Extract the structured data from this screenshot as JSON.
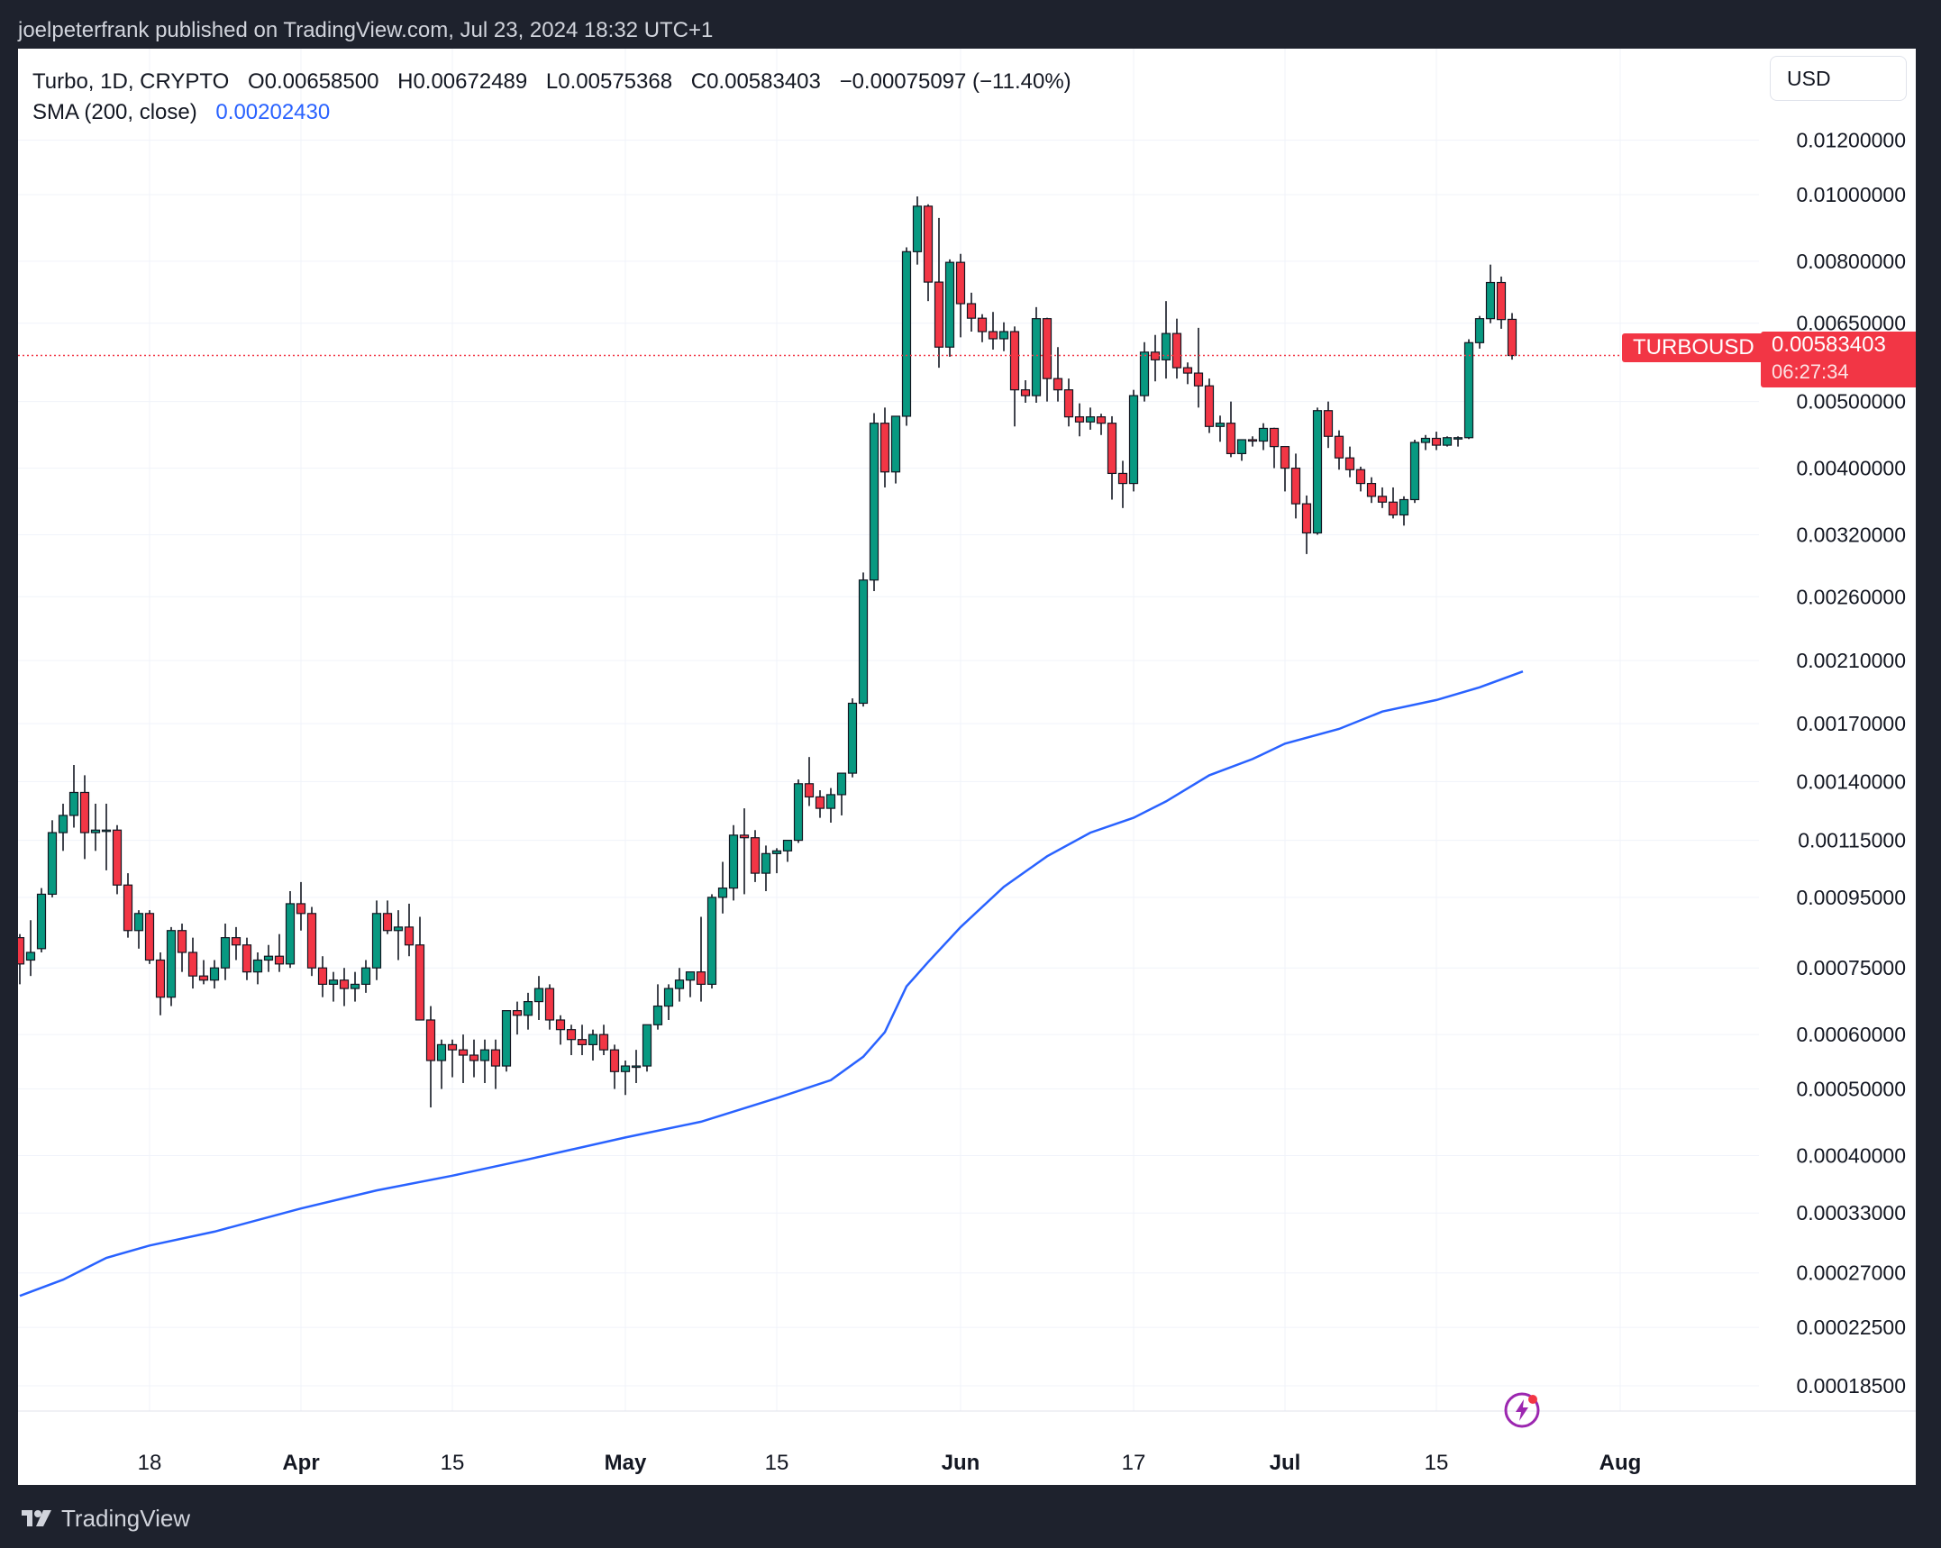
{
  "caption": "joelpeterfrank published on TradingView.com, Jul 23, 2024 18:32 UTC+1",
  "legend": {
    "symbol": "Turbo, 1D, CRYPTO",
    "open": "O0.00658500",
    "high": "H0.00672489",
    "low": "L0.00575368",
    "close": "C0.00583403",
    "change": "−0.00075097 (−11.40%)",
    "sma_label": "SMA (200, close)",
    "sma_value": "0.00202430"
  },
  "currency": "USD",
  "symbol_tag": "TURBOUSD",
  "last_price": "0.00583403",
  "countdown": "06:27:34",
  "brand": "TradingView",
  "colors": {
    "up": "#089981",
    "down": "#f23645",
    "sma": "#2962ff",
    "grid": "#f0f3fa",
    "axis_text": "#131722",
    "page_bg": "#1e222d"
  },
  "chart_data": {
    "type": "candlestick",
    "scale": "log",
    "interval": "1D",
    "ylim": [
      0.00017,
      0.0132
    ],
    "y_ticks": [
      "0.00018500",
      "0.00022500",
      "0.00027000",
      "0.00033000",
      "0.00040000",
      "0.00050000",
      "0.00060000",
      "0.00075000",
      "0.00095000",
      "0.00115000",
      "0.00140000",
      "0.00170000",
      "0.00210000",
      "0.00260000",
      "0.00320000",
      "0.00400000",
      "0.00500000",
      "0.00650000",
      "0.00800000",
      "0.01000000",
      "0.01200000"
    ],
    "x_ticks": [
      {
        "label": "18",
        "date": "2024-03-18"
      },
      {
        "label": "Apr",
        "date": "2024-04-01"
      },
      {
        "label": "15",
        "date": "2024-04-15"
      },
      {
        "label": "May",
        "date": "2024-05-01"
      },
      {
        "label": "15",
        "date": "2024-05-15"
      },
      {
        "label": "Jun",
        "date": "2024-06-01"
      },
      {
        "label": "17",
        "date": "2024-06-17"
      },
      {
        "label": "Jul",
        "date": "2024-07-01"
      },
      {
        "label": "15",
        "date": "2024-07-15"
      },
      {
        "label": "Aug",
        "date": "2024-08-01"
      }
    ],
    "last_price": 0.00583403,
    "first_date": "2024-03-06",
    "candles": [
      [
        0.00083,
        0.00084,
        0.00071,
        0.00076
      ],
      [
        0.00077,
        0.00088,
        0.00073,
        0.00079
      ],
      [
        0.0008,
        0.00098,
        0.00079,
        0.00096
      ],
      [
        0.00096,
        0.00123,
        0.00095,
        0.00118
      ],
      [
        0.00118,
        0.0013,
        0.00111,
        0.00125
      ],
      [
        0.00125,
        0.00148,
        0.0012,
        0.00135
      ],
      [
        0.00135,
        0.00143,
        0.00108,
        0.00118
      ],
      [
        0.00118,
        0.0013,
        0.00111,
        0.00119
      ],
      [
        0.00119,
        0.0013,
        0.00104,
        0.00119
      ],
      [
        0.00119,
        0.00121,
        0.00096,
        0.00099
      ],
      [
        0.00099,
        0.00103,
        0.00083,
        0.00085
      ],
      [
        0.00085,
        0.00091,
        0.0008,
        0.0009
      ],
      [
        0.0009,
        0.00091,
        0.00076,
        0.00077
      ],
      [
        0.00077,
        0.00079,
        0.00064,
        0.00068
      ],
      [
        0.00068,
        0.00086,
        0.00066,
        0.00085
      ],
      [
        0.00085,
        0.00087,
        0.00074,
        0.00079
      ],
      [
        0.00079,
        0.00083,
        0.0007,
        0.00073
      ],
      [
        0.00073,
        0.00077,
        0.00071,
        0.00072
      ],
      [
        0.00072,
        0.00077,
        0.0007,
        0.00075
      ],
      [
        0.00075,
        0.00087,
        0.00072,
        0.00083
      ],
      [
        0.00083,
        0.00086,
        0.00077,
        0.00081
      ],
      [
        0.00081,
        0.00083,
        0.00072,
        0.00074
      ],
      [
        0.00074,
        0.00079,
        0.00071,
        0.00077
      ],
      [
        0.00077,
        0.00081,
        0.00074,
        0.00078
      ],
      [
        0.00078,
        0.00084,
        0.00074,
        0.00076
      ],
      [
        0.00076,
        0.00097,
        0.00075,
        0.00093
      ],
      [
        0.00093,
        0.001,
        0.00085,
        0.0009
      ],
      [
        0.0009,
        0.00092,
        0.00073,
        0.00075
      ],
      [
        0.00075,
        0.00078,
        0.00068,
        0.00071
      ],
      [
        0.00071,
        0.00074,
        0.00067,
        0.00072
      ],
      [
        0.00072,
        0.00075,
        0.00066,
        0.0007
      ],
      [
        0.0007,
        0.00074,
        0.00067,
        0.00071
      ],
      [
        0.00071,
        0.00077,
        0.00069,
        0.00075
      ],
      [
        0.00075,
        0.00094,
        0.00072,
        0.0009
      ],
      [
        0.0009,
        0.00094,
        0.00084,
        0.00085
      ],
      [
        0.00085,
        0.00091,
        0.00077,
        0.00086
      ],
      [
        0.00086,
        0.00093,
        0.00078,
        0.00081
      ],
      [
        0.00081,
        0.00089,
        0.00069,
        0.00063
      ],
      [
        0.00063,
        0.00066,
        0.00047,
        0.00055
      ],
      [
        0.00055,
        0.00059,
        0.0005,
        0.00058
      ],
      [
        0.00058,
        0.00059,
        0.00052,
        0.00057
      ],
      [
        0.00057,
        0.0006,
        0.00051,
        0.00056
      ],
      [
        0.00056,
        0.00059,
        0.00052,
        0.00055
      ],
      [
        0.00055,
        0.00059,
        0.00051,
        0.00057
      ],
      [
        0.00057,
        0.00059,
        0.0005,
        0.00054
      ],
      [
        0.00054,
        0.00065,
        0.00053,
        0.00065
      ],
      [
        0.00065,
        0.00067,
        0.0006,
        0.00064
      ],
      [
        0.00064,
        0.00069,
        0.00061,
        0.00067
      ],
      [
        0.00067,
        0.00073,
        0.00063,
        0.0007
      ],
      [
        0.0007,
        0.00071,
        0.00061,
        0.00063
      ],
      [
        0.00063,
        0.00064,
        0.00058,
        0.00061
      ],
      [
        0.00061,
        0.00062,
        0.00056,
        0.00059
      ],
      [
        0.00059,
        0.00062,
        0.00056,
        0.00058
      ],
      [
        0.00058,
        0.00061,
        0.00055,
        0.0006
      ],
      [
        0.0006,
        0.00062,
        0.00056,
        0.00057
      ],
      [
        0.00057,
        0.00058,
        0.0005,
        0.00053
      ],
      [
        0.00053,
        0.00055,
        0.00049,
        0.00054
      ],
      [
        0.00054,
        0.00057,
        0.00051,
        0.00054
      ],
      [
        0.00054,
        0.00062,
        0.00053,
        0.00062
      ],
      [
        0.00062,
        0.00071,
        0.00061,
        0.00066
      ],
      [
        0.00066,
        0.00071,
        0.00063,
        0.0007
      ],
      [
        0.0007,
        0.00075,
        0.00067,
        0.00072
      ],
      [
        0.00072,
        0.00074,
        0.00068,
        0.00074
      ],
      [
        0.00074,
        0.00089,
        0.00067,
        0.00071
      ],
      [
        0.00071,
        0.00096,
        0.0007,
        0.00095
      ],
      [
        0.00095,
        0.00107,
        0.0009,
        0.00098
      ],
      [
        0.00098,
        0.00121,
        0.00094,
        0.00117
      ],
      [
        0.00117,
        0.00128,
        0.00096,
        0.00116
      ],
      [
        0.00116,
        0.00119,
        0.001,
        0.00103
      ],
      [
        0.00103,
        0.00113,
        0.00097,
        0.0011
      ],
      [
        0.0011,
        0.00112,
        0.00103,
        0.00111
      ],
      [
        0.00111,
        0.00115,
        0.00107,
        0.00115
      ],
      [
        0.00115,
        0.00141,
        0.00114,
        0.00139
      ],
      [
        0.00139,
        0.00152,
        0.00129,
        0.00133
      ],
      [
        0.00133,
        0.00136,
        0.00124,
        0.00128
      ],
      [
        0.00128,
        0.00137,
        0.00122,
        0.00134
      ],
      [
        0.00134,
        0.00143,
        0.00125,
        0.00144
      ],
      [
        0.00144,
        0.00185,
        0.00142,
        0.00182
      ],
      [
        0.00182,
        0.00282,
        0.0018,
        0.00275
      ],
      [
        0.00275,
        0.00481,
        0.00265,
        0.00465
      ],
      [
        0.00465,
        0.0049,
        0.00375,
        0.00395
      ],
      [
        0.00395,
        0.0047,
        0.0038,
        0.00476
      ],
      [
        0.00476,
        0.00838,
        0.00461,
        0.00826
      ],
      [
        0.00826,
        0.00994,
        0.00791,
        0.00962
      ],
      [
        0.00962,
        0.00968,
        0.007,
        0.00746
      ],
      [
        0.00746,
        0.00925,
        0.0056,
        0.006
      ],
      [
        0.006,
        0.00805,
        0.00581,
        0.00797
      ],
      [
        0.00797,
        0.0082,
        0.0062,
        0.00694
      ],
      [
        0.00694,
        0.0072,
        0.00632,
        0.00661
      ],
      [
        0.00661,
        0.0067,
        0.0061,
        0.00632
      ],
      [
        0.00632,
        0.00675,
        0.00595,
        0.00617
      ],
      [
        0.00617,
        0.00652,
        0.00592,
        0.00632
      ],
      [
        0.00632,
        0.00643,
        0.0046,
        0.0052
      ],
      [
        0.0052,
        0.00537,
        0.00498,
        0.0051
      ],
      [
        0.0051,
        0.00686,
        0.00498,
        0.0066
      ],
      [
        0.0066,
        0.00662,
        0.005,
        0.0054
      ],
      [
        0.0054,
        0.006,
        0.005,
        0.0052
      ],
      [
        0.0052,
        0.0054,
        0.0046,
        0.00475
      ],
      [
        0.00475,
        0.00497,
        0.00445,
        0.00467
      ],
      [
        0.00467,
        0.0049,
        0.00455,
        0.00475
      ],
      [
        0.00475,
        0.0048,
        0.00447,
        0.00465
      ],
      [
        0.00465,
        0.00476,
        0.0036,
        0.00393
      ],
      [
        0.00393,
        0.0041,
        0.0035,
        0.0038
      ],
      [
        0.0038,
        0.0052,
        0.0037,
        0.0051
      ],
      [
        0.0051,
        0.0061,
        0.005,
        0.0059
      ],
      [
        0.0059,
        0.00625,
        0.00535,
        0.00575
      ],
      [
        0.00575,
        0.007,
        0.0054,
        0.00628
      ],
      [
        0.00628,
        0.0066,
        0.0054,
        0.0056
      ],
      [
        0.0056,
        0.0057,
        0.0053,
        0.0055
      ],
      [
        0.0055,
        0.0064,
        0.0049,
        0.00527
      ],
      [
        0.00527,
        0.0054,
        0.0045,
        0.0046
      ],
      [
        0.0046,
        0.00477,
        0.00437,
        0.00465
      ],
      [
        0.00465,
        0.005,
        0.00415,
        0.0042
      ],
      [
        0.0042,
        0.0044,
        0.0041,
        0.0044
      ],
      [
        0.0044,
        0.00445,
        0.0043,
        0.00438
      ],
      [
        0.00438,
        0.00465,
        0.00425,
        0.00457
      ],
      [
        0.00457,
        0.00458,
        0.004,
        0.0043
      ],
      [
        0.0043,
        0.0043,
        0.0037,
        0.004
      ],
      [
        0.004,
        0.0042,
        0.00338,
        0.00355
      ],
      [
        0.00355,
        0.00365,
        0.003,
        0.00322
      ],
      [
        0.00322,
        0.0049,
        0.0032,
        0.00485
      ],
      [
        0.00485,
        0.005,
        0.00428,
        0.00445
      ],
      [
        0.00445,
        0.00454,
        0.00398,
        0.00414
      ],
      [
        0.00414,
        0.0043,
        0.00388,
        0.00398
      ],
      [
        0.00398,
        0.00402,
        0.0037,
        0.0038
      ],
      [
        0.0038,
        0.00388,
        0.00356,
        0.00364
      ],
      [
        0.00364,
        0.00375,
        0.0035,
        0.00357
      ],
      [
        0.00357,
        0.00375,
        0.00338,
        0.00342
      ],
      [
        0.00342,
        0.00364,
        0.0033,
        0.0036
      ],
      [
        0.0036,
        0.0044,
        0.00356,
        0.00436
      ],
      [
        0.00436,
        0.00447,
        0.00425,
        0.00442
      ],
      [
        0.00442,
        0.00452,
        0.00425,
        0.00432
      ],
      [
        0.00432,
        0.00445,
        0.0043,
        0.00443
      ],
      [
        0.00443,
        0.00445,
        0.0043,
        0.00443
      ],
      [
        0.00443,
        0.00616,
        0.00441,
        0.00609
      ],
      [
        0.00609,
        0.00666,
        0.00597,
        0.0066
      ],
      [
        0.0066,
        0.00791,
        0.0065,
        0.00745
      ],
      [
        0.00745,
        0.0076,
        0.00638,
        0.00658
      ],
      [
        0.006585,
        0.00672489,
        0.00575368,
        0.00583403
      ]
    ],
    "sma": {
      "name": "SMA (200, close)",
      "points": [
        [
          "2024-03-06",
          0.00025
        ],
        [
          "2024-03-10",
          0.000264
        ],
        [
          "2024-03-14",
          0.000284
        ],
        [
          "2024-03-18",
          0.000296
        ],
        [
          "2024-03-24",
          0.00031
        ],
        [
          "2024-04-01",
          0.000335
        ],
        [
          "2024-04-08",
          0.000356
        ],
        [
          "2024-04-15",
          0.000374
        ],
        [
          "2024-04-22",
          0.000395
        ],
        [
          "2024-05-01",
          0.000425
        ],
        [
          "2024-05-08",
          0.000448
        ],
        [
          "2024-05-15",
          0.000485
        ],
        [
          "2024-05-20",
          0.000515
        ],
        [
          "2024-05-23",
          0.000557
        ],
        [
          "2024-05-25",
          0.000605
        ],
        [
          "2024-05-27",
          0.000705
        ],
        [
          "2024-05-29",
          0.000765
        ],
        [
          "2024-06-01",
          0.00086
        ],
        [
          "2024-06-05",
          0.000984
        ],
        [
          "2024-06-09",
          0.00109
        ],
        [
          "2024-06-13",
          0.00118
        ],
        [
          "2024-06-17",
          0.00124
        ],
        [
          "2024-06-20",
          0.00131
        ],
        [
          "2024-06-24",
          0.00143
        ],
        [
          "2024-06-28",
          0.00151
        ],
        [
          "2024-07-01",
          0.00159
        ],
        [
          "2024-07-06",
          0.00167
        ],
        [
          "2024-07-10",
          0.00177
        ],
        [
          "2024-07-15",
          0.00184
        ],
        [
          "2024-07-19",
          0.00192
        ],
        [
          "2024-07-23",
          0.0020243
        ]
      ]
    }
  }
}
